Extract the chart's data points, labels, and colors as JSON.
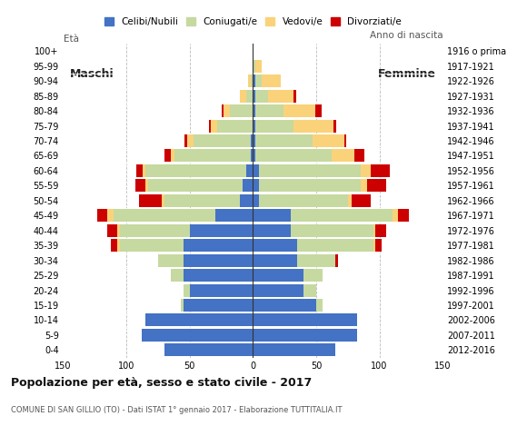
{
  "age_groups": [
    "0-4",
    "5-9",
    "10-14",
    "15-19",
    "20-24",
    "25-29",
    "30-34",
    "35-39",
    "40-44",
    "45-49",
    "50-54",
    "55-59",
    "60-64",
    "65-69",
    "70-74",
    "75-79",
    "80-84",
    "85-89",
    "90-94",
    "95-99",
    "100+"
  ],
  "birth_years": [
    "2012-2016",
    "2007-2011",
    "2002-2006",
    "1997-2001",
    "1992-1996",
    "1987-1991",
    "1982-1986",
    "1977-1981",
    "1972-1976",
    "1967-1971",
    "1962-1966",
    "1957-1961",
    "1952-1956",
    "1947-1951",
    "1942-1946",
    "1937-1941",
    "1932-1936",
    "1927-1931",
    "1922-1926",
    "1917-1921",
    "1916 o prima"
  ],
  "male": {
    "celibi": [
      70,
      88,
      85,
      55,
      50,
      55,
      55,
      55,
      50,
      30,
      10,
      8,
      5,
      2,
      2,
      0,
      0,
      0,
      0,
      0,
      0
    ],
    "coniugati": [
      0,
      0,
      0,
      2,
      5,
      10,
      20,
      50,
      55,
      80,
      60,
      75,
      80,
      60,
      45,
      28,
      18,
      5,
      2,
      0,
      0
    ],
    "vedovi": [
      0,
      0,
      0,
      0,
      0,
      0,
      0,
      2,
      2,
      5,
      2,
      2,
      2,
      3,
      5,
      5,
      5,
      5,
      2,
      0,
      0
    ],
    "divorziati": [
      0,
      0,
      0,
      0,
      0,
      0,
      0,
      5,
      8,
      8,
      18,
      8,
      5,
      5,
      2,
      2,
      2,
      0,
      0,
      0,
      0
    ]
  },
  "female": {
    "celibi": [
      65,
      82,
      82,
      50,
      40,
      40,
      35,
      35,
      30,
      30,
      5,
      5,
      5,
      2,
      2,
      2,
      2,
      2,
      2,
      0,
      0
    ],
    "coniugati": [
      0,
      0,
      0,
      5,
      10,
      15,
      30,
      60,
      65,
      80,
      70,
      80,
      80,
      60,
      45,
      30,
      22,
      10,
      5,
      2,
      0
    ],
    "vedovi": [
      0,
      0,
      0,
      0,
      0,
      0,
      0,
      2,
      2,
      5,
      3,
      5,
      8,
      18,
      25,
      32,
      25,
      20,
      15,
      5,
      0
    ],
    "divorziati": [
      0,
      0,
      0,
      0,
      0,
      0,
      2,
      5,
      8,
      8,
      15,
      15,
      15,
      8,
      2,
      2,
      5,
      2,
      0,
      0,
      0
    ]
  },
  "colors": {
    "celibi": "#4472c4",
    "coniugati": "#c6d9a0",
    "vedovi": "#fad27a",
    "divorziati": "#cc0000"
  },
  "title": "Popolazione per età, sesso e stato civile - 2017",
  "subtitle": "COMUNE DI SAN GILLIO (TO) - Dati ISTAT 1° gennaio 2017 - Elaborazione TUTTITALIA.IT",
  "ylabel_left": "Età",
  "ylabel_right": "Anno di nascita",
  "xlim": 150,
  "legend_labels": [
    "Celibi/Nubili",
    "Coniugati/e",
    "Vedovi/e",
    "Divorziati/e"
  ],
  "male_label": "Maschi",
  "female_label": "Femmine",
  "bg_color": "#ffffff",
  "bar_height": 0.85
}
